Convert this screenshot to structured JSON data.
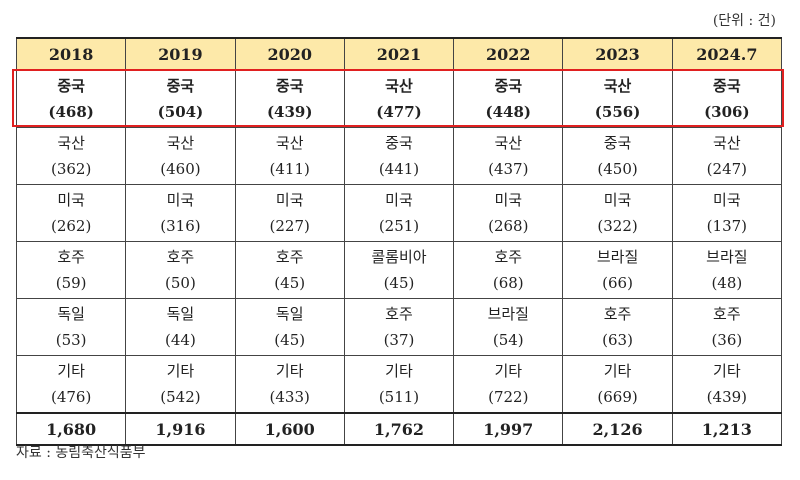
{
  "unit_note": "(단위 : 건)",
  "years": [
    "2018",
    "2019",
    "2020",
    "2021",
    "2022",
    "2023",
    "2024.7"
  ],
  "rows": [
    [
      {
        "name": "중국",
        "count": "(468)"
      },
      {
        "name": "중국",
        "count": "(504)"
      },
      {
        "name": "중국",
        "count": "(439)"
      },
      {
        "name": "국산",
        "count": "(477)"
      },
      {
        "name": "중국",
        "count": "(448)"
      },
      {
        "name": "국산",
        "count": "(556)"
      },
      {
        "name": "중국",
        "count": "(306)"
      }
    ],
    [
      {
        "name": "국산",
        "count": "(362)"
      },
      {
        "name": "국산",
        "count": "(460)"
      },
      {
        "name": "국산",
        "count": "(411)"
      },
      {
        "name": "중국",
        "count": "(441)"
      },
      {
        "name": "국산",
        "count": "(437)"
      },
      {
        "name": "중국",
        "count": "(450)"
      },
      {
        "name": "국산",
        "count": "(247)"
      }
    ],
    [
      {
        "name": "미국",
        "count": "(262)"
      },
      {
        "name": "미국",
        "count": "(316)"
      },
      {
        "name": "미국",
        "count": "(227)"
      },
      {
        "name": "미국",
        "count": "(251)"
      },
      {
        "name": "미국",
        "count": "(268)"
      },
      {
        "name": "미국",
        "count": "(322)"
      },
      {
        "name": "미국",
        "count": "(137)"
      }
    ],
    [
      {
        "name": "호주",
        "count": "(59)"
      },
      {
        "name": "호주",
        "count": "(50)"
      },
      {
        "name": "호주",
        "count": "(45)"
      },
      {
        "name": "콜롬비아",
        "count": "(45)"
      },
      {
        "name": "호주",
        "count": "(68)"
      },
      {
        "name": "브라질",
        "count": "(66)"
      },
      {
        "name": "브라질",
        "count": "(48)"
      }
    ],
    [
      {
        "name": "독일",
        "count": "(53)"
      },
      {
        "name": "독일",
        "count": "(44)"
      },
      {
        "name": "독일",
        "count": "(45)"
      },
      {
        "name": "호주",
        "count": "(37)"
      },
      {
        "name": "브라질",
        "count": "(54)"
      },
      {
        "name": "호주",
        "count": "(63)"
      },
      {
        "name": "호주",
        "count": "(36)"
      }
    ],
    [
      {
        "name": "기타",
        "count": "(476)"
      },
      {
        "name": "기타",
        "count": "(542)"
      },
      {
        "name": "기타",
        "count": "(433)"
      },
      {
        "name": "기타",
        "count": "(511)"
      },
      {
        "name": "기타",
        "count": "(722)"
      },
      {
        "name": "기타",
        "count": "(669)"
      },
      {
        "name": "기타",
        "count": "(439)"
      }
    ]
  ],
  "totals": [
    "1,680",
    "1,916",
    "1,600",
    "1,762",
    "1,997",
    "2,126",
    "1,213"
  ],
  "source": "자료 : 농림축산식품부",
  "colors": {
    "header_background": "#fde9a9",
    "highlight_border": "#e02020"
  }
}
